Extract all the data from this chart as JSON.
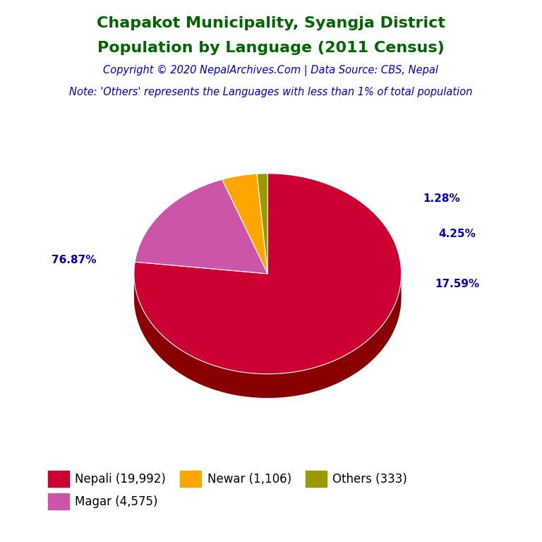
{
  "title_line1": "Chapakot Municipality, Syangja District",
  "title_line2": "Population by Language (2011 Census)",
  "copyright": "Copyright © 2020 NepalArchives.Com | Data Source: CBS, Nepal",
  "note": "Note: 'Others' represents the Languages with less than 1% of total population",
  "labels": [
    "Nepali (19,992)",
    "Magar (4,575)",
    "Newar (1,106)",
    "Others (333)"
  ],
  "values": [
    19992,
    4575,
    1106,
    333
  ],
  "pcts": [
    "76.87%",
    "17.59%",
    "4.25%",
    "1.28%"
  ],
  "colors": [
    "#CC0033",
    "#CC55AA",
    "#FFA500",
    "#999900"
  ],
  "side_colors": [
    "#880000",
    "#881144",
    "#AA6600",
    "#555500"
  ],
  "title_color": "#006600",
  "copyright_color": "#0000CC",
  "note_color": "#0000CC",
  "pct_color": "#0000BB",
  "bg_color": "#FFFFFF",
  "startangle": 90
}
